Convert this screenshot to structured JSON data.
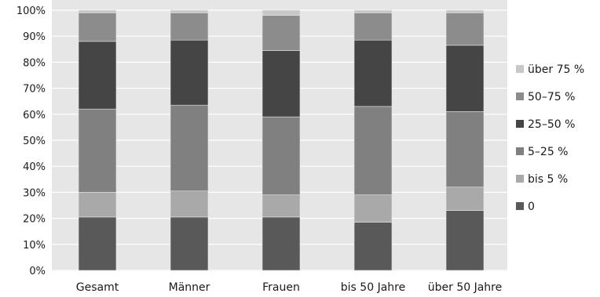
{
  "chart_data": {
    "type": "bar",
    "stacked": true,
    "title": "",
    "xlabel": "",
    "ylabel": "",
    "ylim": [
      0,
      100
    ],
    "y_ticks": [
      "0%",
      "10%",
      "20%",
      "30%",
      "40%",
      "50%",
      "60%",
      "70%",
      "80%",
      "90%",
      "100%"
    ],
    "grid": true,
    "legend_position": "right",
    "categories": [
      "Gesamt",
      "Männer",
      "Frauen",
      "bis 50 Jahre",
      "über 50 Jahre"
    ],
    "series": [
      {
        "name": "0",
        "color": "#595959",
        "values": [
          20.5,
          20.5,
          20.5,
          18.5,
          23.0
        ]
      },
      {
        "name": "bis 5 %",
        "color": "#a9a9a9",
        "values": [
          9.5,
          10.0,
          8.5,
          10.5,
          9.0
        ]
      },
      {
        "name": "5–25 %",
        "color": "#808080",
        "values": [
          32.0,
          33.0,
          30.0,
          34.0,
          29.0
        ]
      },
      {
        "name": "25–50 %",
        "color": "#454545",
        "values": [
          26.0,
          25.0,
          25.5,
          25.5,
          25.5
        ]
      },
      {
        "name": "50–75 %",
        "color": "#8c8c8c",
        "values": [
          11.0,
          10.5,
          13.5,
          10.5,
          12.5
        ]
      },
      {
        "name": "über 75 %",
        "color": "#c8c8c8",
        "values": [
          1.0,
          1.0,
          2.0,
          1.0,
          1.0
        ]
      }
    ]
  }
}
